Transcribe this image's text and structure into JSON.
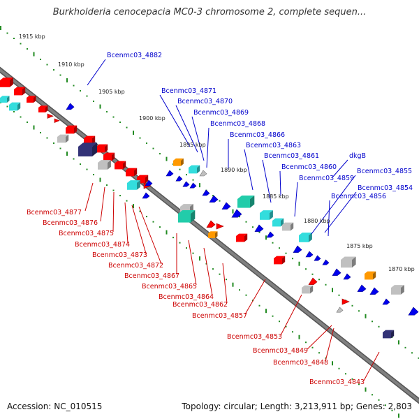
{
  "header": {
    "title": "Burkholderia cenocepacia MC0-3 chromosome 2, complete sequen..."
  },
  "footer": {
    "accession": "Accession: NC_010515",
    "summary": "Topology: circular; Length: 3,213,911 bp; Genes: 2,803"
  },
  "colors": {
    "upper_label": "#0000cc",
    "lower_label": "#cc0000",
    "backbone": "#808080",
    "ruler_dots": "#228b22",
    "red_gene": "#ff0000",
    "blue_gene": "#0000ee",
    "cyan_gene": "#33dddd",
    "orange_gene": "#ff9900",
    "gray_gene": "#c0c0c0",
    "teal_gene": "#22ccaa",
    "navy_gene": "#333377"
  },
  "ruler": [
    {
      "label": "1915 kbp"
    },
    {
      "label": "1910 kbp"
    },
    {
      "label": "1905 kbp"
    },
    {
      "label": "1900 kbp"
    },
    {
      "label": "1895 kbp"
    },
    {
      "label": "1890 kbp"
    },
    {
      "label": "1885 kbp"
    },
    {
      "label": "1880 kbp"
    },
    {
      "label": "1875 kbp"
    },
    {
      "label": "1870 kbp"
    }
  ],
  "upper_labels": [
    {
      "text": "Bcenmc03_4882"
    },
    {
      "text": "Bcenmc03_4871"
    },
    {
      "text": "Bcenmc03_4870"
    },
    {
      "text": "Bcenmc03_4869"
    },
    {
      "text": "Bcenmc03_4868"
    },
    {
      "text": "Bcenmc03_4866"
    },
    {
      "text": "Bcenmc03_4863"
    },
    {
      "text": "Bcenmc03_4861"
    },
    {
      "text": "dkgB"
    },
    {
      "text": "Bcenmc03_4860"
    },
    {
      "text": "Bcenmc03_4859"
    },
    {
      "text": "Bcenmc03_4855"
    },
    {
      "text": "Bcenmc03_4854"
    },
    {
      "text": "Bcenmc03_4856"
    }
  ],
  "lower_labels": [
    {
      "text": "Bcenmc03_4877"
    },
    {
      "text": "Bcenmc03_4876"
    },
    {
      "text": "Bcenmc03_4875"
    },
    {
      "text": "Bcenmc03_4874"
    },
    {
      "text": "Bcenmc03_4873"
    },
    {
      "text": "Bcenmc03_4872"
    },
    {
      "text": "Bcenmc03_4867"
    },
    {
      "text": "Bcenmc03_4865"
    },
    {
      "text": "Bcenmc03_4864"
    },
    {
      "text": "Bcenmc03_4862"
    },
    {
      "text": "Bcenmc03_4857"
    },
    {
      "text": "Bcenmc03_4853"
    },
    {
      "text": "Bcenmc03_4849"
    },
    {
      "text": "Bcenmc03_4848"
    },
    {
      "text": "Bcenmc03_4843"
    }
  ]
}
